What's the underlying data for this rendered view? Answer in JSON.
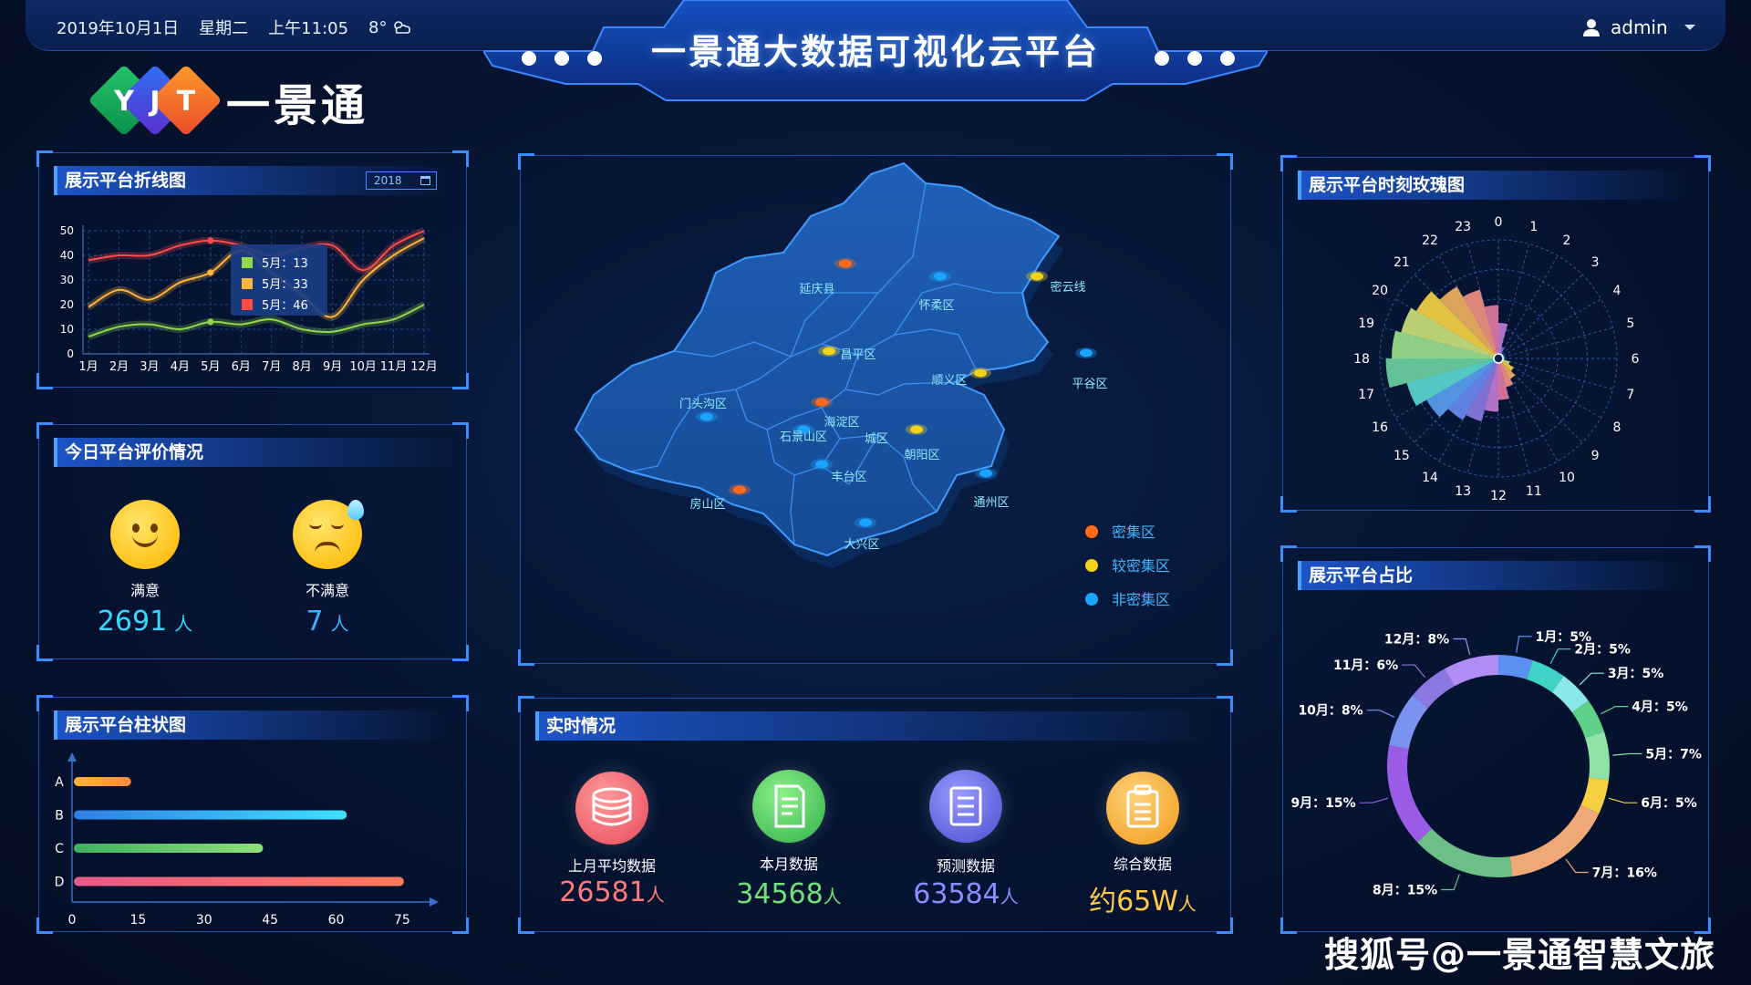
{
  "header": {
    "date": "2019年10月1日",
    "weekday": "星期二",
    "time": "上午11:05",
    "weather": "8°",
    "title": "一景通大数据可视化云平台",
    "user": "admin"
  },
  "logo": {
    "letters": [
      "Y",
      "J",
      "T"
    ],
    "name": "一景通"
  },
  "line_panel": {
    "title": "展示平台折线图",
    "year": "2018"
  },
  "rating_panel": {
    "title": "今日平台评价情况",
    "items": [
      {
        "label": "满意",
        "value": "2691",
        "unit": "人",
        "color": "#35d8ff"
      },
      {
        "label": "不满意",
        "value": "7",
        "unit": "人",
        "color": "#3fb0ff"
      }
    ]
  },
  "bar_panel": {
    "title": "展示平台柱状图"
  },
  "map_panel": {
    "districts": [
      "延庆县",
      "怀柔区",
      "密云线",
      "昌平区",
      "顺义区",
      "平谷区",
      "门头沟区",
      "海淀区",
      "石景山区",
      "城区",
      "朝阳区",
      "丰台区",
      "房山区",
      "通州区",
      "大兴区"
    ],
    "legend": [
      {
        "label": "密集区",
        "color": "#ff6a1a"
      },
      {
        "label": "较密集区",
        "color": "#f3d21c"
      },
      {
        "label": "非密集区",
        "color": "#1aa3ff"
      }
    ]
  },
  "realtime_panel": {
    "title": "实时情况",
    "items": [
      {
        "label": "上月平均数据",
        "value": "26581",
        "unit": "人",
        "color": "#ff7a7a"
      },
      {
        "label": "本月数据",
        "value": "34568",
        "unit": "人",
        "color": "#6fe07a"
      },
      {
        "label": "预测数据",
        "value": "63584",
        "unit": "人",
        "color": "#8a8cff"
      },
      {
        "label": "综合数据",
        "value": "约65W",
        "unit": "人",
        "color": "#ffc94a"
      }
    ]
  },
  "rose_panel": {
    "title": "展示平台时刻玫瑰图"
  },
  "ratio_panel": {
    "title": "展示平台占比"
  },
  "watermark": "搜狐号@一景通智慧文旅",
  "chart_data": [
    {
      "type": "line",
      "categories": [
        "1月",
        "2月",
        "3月",
        "4月",
        "5月",
        "6月",
        "7月",
        "8月",
        "9月",
        "10月",
        "11月",
        "12月"
      ],
      "ylim": [
        0,
        50
      ],
      "yticks": [
        0,
        10,
        20,
        30,
        40,
        50
      ],
      "series": [
        {
          "color": "#8fd94a",
          "values": [
            7,
            11,
            12,
            10,
            13,
            12,
            14,
            10,
            9,
            12,
            14,
            20
          ]
        },
        {
          "color": "#ffb43a",
          "values": [
            19,
            26,
            22,
            29,
            33,
            42,
            33,
            24,
            15,
            30,
            40,
            47
          ]
        },
        {
          "color": "#ff4a4a",
          "values": [
            38,
            40,
            40,
            44,
            46,
            44,
            40,
            43,
            44,
            34,
            44,
            50
          ]
        }
      ],
      "tooltip": [
        {
          "text": "5月：13",
          "color": "#8fd94a"
        },
        {
          "text": "5月：33",
          "color": "#ffb43a"
        },
        {
          "text": "5月：46",
          "color": "#ff4a4a"
        }
      ]
    },
    {
      "type": "bar",
      "orientation": "horizontal",
      "categories": [
        "A",
        "B",
        "C",
        "D"
      ],
      "values": [
        13,
        62,
        43,
        75
      ],
      "xlim": [
        0,
        80
      ],
      "xticks": [
        0,
        15,
        30,
        45,
        60,
        75
      ],
      "colors": [
        [
          "#ffb43a",
          "#ff8a3a"
        ],
        [
          "#2f7fe6",
          "#3fe0ff"
        ],
        [
          "#3fb060",
          "#8fe07a"
        ],
        [
          "#e85a8a",
          "#ff7a5a"
        ]
      ]
    },
    {
      "type": "bar",
      "subtype": "polar-rose",
      "categories": [
        "0",
        "1",
        "2",
        "3",
        "4",
        "5",
        "6",
        "7",
        "8",
        "9",
        "10",
        "11",
        "12",
        "13",
        "14",
        "15",
        "16",
        "17",
        "18",
        "19",
        "20",
        "21",
        "22",
        "23"
      ],
      "values": [
        0.3,
        0.1,
        0.05,
        0.05,
        0.05,
        0.05,
        0.05,
        0.1,
        0.15,
        0.2,
        0.25,
        0.35,
        0.45,
        0.55,
        0.6,
        0.7,
        0.8,
        0.95,
        0.9,
        0.85,
        0.8,
        0.7,
        0.6,
        0.45
      ]
    },
    {
      "type": "pie",
      "subtype": "donut",
      "slices": [
        {
          "label": "1月：5%",
          "value": 5,
          "color": "#5b8ff0"
        },
        {
          "label": "2月：5%",
          "value": 5,
          "color": "#3ed2c8"
        },
        {
          "label": "3月：5%",
          "value": 5,
          "color": "#8be8e8"
        },
        {
          "label": "4月：5%",
          "value": 5,
          "color": "#5fd18a"
        },
        {
          "label": "5月：7%",
          "value": 7,
          "color": "#8ee2a8"
        },
        {
          "label": "6月：5%",
          "value": 5,
          "color": "#f5d142"
        },
        {
          "label": "7月：16%",
          "value": 16,
          "color": "#f0a878"
        },
        {
          "label": "8月：15%",
          "value": 15,
          "color": "#6cbf86"
        },
        {
          "label": "9月：15%",
          "value": 15,
          "color": "#9a5ce6"
        },
        {
          "label": "10月：8%",
          "value": 8,
          "color": "#7a92f0"
        },
        {
          "label": "11月：6%",
          "value": 6,
          "color": "#8a78e0"
        },
        {
          "label": "12月：8%",
          "value": 8,
          "color": "#b08cf5"
        }
      ]
    }
  ]
}
